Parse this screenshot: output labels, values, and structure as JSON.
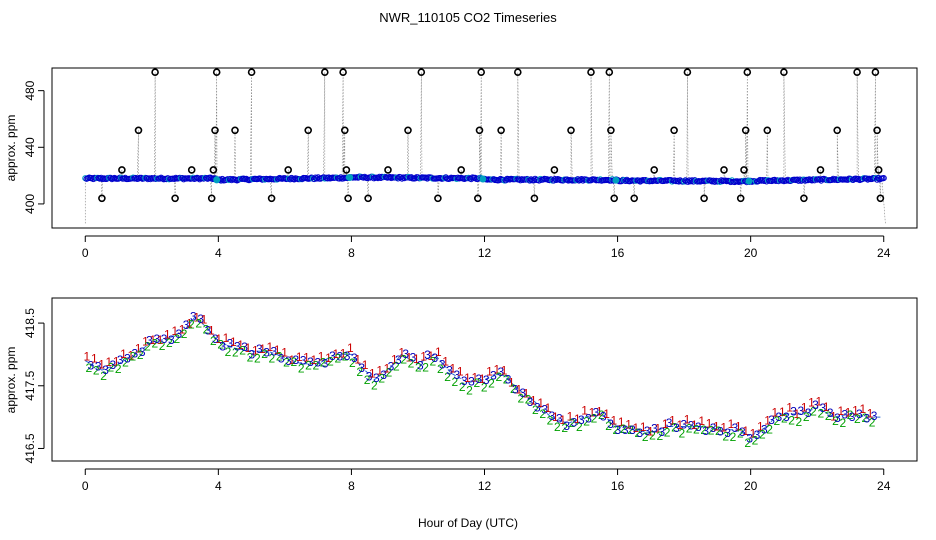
{
  "chart_data": [
    {
      "id": "top",
      "type": "scatter",
      "title": "NWR_110105  CO2 Timeseries",
      "xlabel": "",
      "ylabel": "approx. ppm",
      "xlim": [
        -1,
        25
      ],
      "ylim": [
        383,
        496
      ],
      "xticks": [
        0,
        4,
        8,
        12,
        16,
        20,
        24
      ],
      "yticks": [
        400,
        440,
        480
      ],
      "baseline": [
        {
          "x": 0.0,
          "y": 418.0
        },
        {
          "x": 3.9,
          "y": 418.0
        },
        {
          "x": 3.95,
          "y": 417.0
        },
        {
          "x": 7.9,
          "y": 418.5
        },
        {
          "x": 8.0,
          "y": 418.8
        },
        {
          "x": 11.9,
          "y": 418.0
        },
        {
          "x": 12.0,
          "y": 417.2
        },
        {
          "x": 15.9,
          "y": 417.0
        },
        {
          "x": 16.0,
          "y": 416.5
        },
        {
          "x": 19.9,
          "y": 416.0
        },
        {
          "x": 20.0,
          "y": 416.2
        },
        {
          "x": 24.0,
          "y": 417.8
        }
      ],
      "outliers": [
        {
          "x": 0.5,
          "y": 404
        },
        {
          "x": 1.1,
          "y": 424
        },
        {
          "x": 1.6,
          "y": 452
        },
        {
          "x": 2.1,
          "y": 493
        },
        {
          "x": 2.7,
          "y": 404
        },
        {
          "x": 3.2,
          "y": 424
        },
        {
          "x": 3.8,
          "y": 404
        },
        {
          "x": 3.85,
          "y": 424
        },
        {
          "x": 3.9,
          "y": 452
        },
        {
          "x": 3.95,
          "y": 493
        },
        {
          "x": 4.5,
          "y": 452
        },
        {
          "x": 5.0,
          "y": 493
        },
        {
          "x": 5.6,
          "y": 404
        },
        {
          "x": 6.1,
          "y": 424
        },
        {
          "x": 6.7,
          "y": 452
        },
        {
          "x": 7.2,
          "y": 493
        },
        {
          "x": 7.75,
          "y": 493
        },
        {
          "x": 7.8,
          "y": 452
        },
        {
          "x": 7.85,
          "y": 424
        },
        {
          "x": 7.9,
          "y": 404
        },
        {
          "x": 8.5,
          "y": 404
        },
        {
          "x": 9.1,
          "y": 424
        },
        {
          "x": 9.7,
          "y": 452
        },
        {
          "x": 10.1,
          "y": 493
        },
        {
          "x": 10.6,
          "y": 404
        },
        {
          "x": 11.3,
          "y": 424
        },
        {
          "x": 11.8,
          "y": 404
        },
        {
          "x": 11.85,
          "y": 452
        },
        {
          "x": 11.9,
          "y": 493
        },
        {
          "x": 12.5,
          "y": 452
        },
        {
          "x": 13.0,
          "y": 493
        },
        {
          "x": 13.5,
          "y": 404
        },
        {
          "x": 14.1,
          "y": 424
        },
        {
          "x": 14.6,
          "y": 452
        },
        {
          "x": 15.2,
          "y": 493
        },
        {
          "x": 15.8,
          "y": 452
        },
        {
          "x": 15.75,
          "y": 493
        },
        {
          "x": 15.9,
          "y": 404
        },
        {
          "x": 16.5,
          "y": 404
        },
        {
          "x": 17.1,
          "y": 424
        },
        {
          "x": 17.7,
          "y": 452
        },
        {
          "x": 18.1,
          "y": 493
        },
        {
          "x": 18.6,
          "y": 404
        },
        {
          "x": 19.2,
          "y": 424
        },
        {
          "x": 19.7,
          "y": 404
        },
        {
          "x": 19.8,
          "y": 424
        },
        {
          "x": 19.85,
          "y": 452
        },
        {
          "x": 19.9,
          "y": 493
        },
        {
          "x": 20.5,
          "y": 452
        },
        {
          "x": 21.0,
          "y": 493
        },
        {
          "x": 21.6,
          "y": 404
        },
        {
          "x": 22.1,
          "y": 424
        },
        {
          "x": 22.6,
          "y": 452
        },
        {
          "x": 23.2,
          "y": 493
        },
        {
          "x": 23.75,
          "y": 493
        },
        {
          "x": 23.8,
          "y": 452
        },
        {
          "x": 23.85,
          "y": 424
        },
        {
          "x": 23.9,
          "y": 404
        }
      ],
      "colors": {
        "main": "#0000cc",
        "accent": "#00a0c0",
        "outlier": "#000000",
        "connector": "#808080"
      }
    },
    {
      "id": "bottom",
      "type": "line",
      "title": "",
      "xlabel": "Hour of Day (UTC)",
      "ylabel": "approx. ppm",
      "xlim": [
        -1,
        25
      ],
      "ylim": [
        416.3,
        418.9
      ],
      "xticks": [
        0,
        4,
        8,
        12,
        16,
        20,
        24
      ],
      "yticks": [
        416.5,
        417.5,
        418.5
      ],
      "series": [
        {
          "name": "1",
          "symbol": "1",
          "color": "#cc0000"
        },
        {
          "name": "2",
          "symbol": "2",
          "color": "#00a000"
        },
        {
          "name": "3",
          "symbol": "3",
          "color": "#0000bb"
        }
      ],
      "trend": [
        {
          "x": 0.0,
          "y": 417.9
        },
        {
          "x": 0.5,
          "y": 417.75
        },
        {
          "x": 1.0,
          "y": 417.85
        },
        {
          "x": 1.5,
          "y": 418.0
        },
        {
          "x": 2.0,
          "y": 418.2
        },
        {
          "x": 2.5,
          "y": 418.25
        },
        {
          "x": 3.0,
          "y": 418.4
        },
        {
          "x": 3.3,
          "y": 418.6
        },
        {
          "x": 3.7,
          "y": 418.4
        },
        {
          "x": 4.0,
          "y": 418.2
        },
        {
          "x": 4.5,
          "y": 418.1
        },
        {
          "x": 5.0,
          "y": 418.05
        },
        {
          "x": 5.5,
          "y": 418.05
        },
        {
          "x": 6.0,
          "y": 417.95
        },
        {
          "x": 6.5,
          "y": 417.85
        },
        {
          "x": 7.0,
          "y": 417.85
        },
        {
          "x": 7.5,
          "y": 418.0
        },
        {
          "x": 8.0,
          "y": 418.0
        },
        {
          "x": 8.3,
          "y": 417.8
        },
        {
          "x": 8.7,
          "y": 417.6
        },
        {
          "x": 9.2,
          "y": 417.8
        },
        {
          "x": 9.5,
          "y": 418.0
        },
        {
          "x": 10.0,
          "y": 417.85
        },
        {
          "x": 10.5,
          "y": 418.0
        },
        {
          "x": 11.0,
          "y": 417.7
        },
        {
          "x": 11.5,
          "y": 417.55
        },
        {
          "x": 12.0,
          "y": 417.6
        },
        {
          "x": 12.5,
          "y": 417.7
        },
        {
          "x": 13.0,
          "y": 417.45
        },
        {
          "x": 13.5,
          "y": 417.25
        },
        {
          "x": 14.0,
          "y": 417.0
        },
        {
          "x": 14.5,
          "y": 416.9
        },
        {
          "x": 15.0,
          "y": 417.0
        },
        {
          "x": 15.5,
          "y": 417.05
        },
        {
          "x": 16.0,
          "y": 416.85
        },
        {
          "x": 16.5,
          "y": 416.8
        },
        {
          "x": 17.0,
          "y": 416.75
        },
        {
          "x": 17.5,
          "y": 416.85
        },
        {
          "x": 18.0,
          "y": 416.85
        },
        {
          "x": 18.5,
          "y": 416.85
        },
        {
          "x": 19.0,
          "y": 416.8
        },
        {
          "x": 19.5,
          "y": 416.8
        },
        {
          "x": 20.0,
          "y": 416.7
        },
        {
          "x": 20.5,
          "y": 416.85
        },
        {
          "x": 20.8,
          "y": 417.05
        },
        {
          "x": 21.5,
          "y": 417.05
        },
        {
          "x": 22.0,
          "y": 417.15
        },
        {
          "x": 22.5,
          "y": 417.0
        },
        {
          "x": 23.0,
          "y": 417.05
        },
        {
          "x": 23.5,
          "y": 417.0
        },
        {
          "x": 23.9,
          "y": 417.0
        }
      ]
    }
  ]
}
